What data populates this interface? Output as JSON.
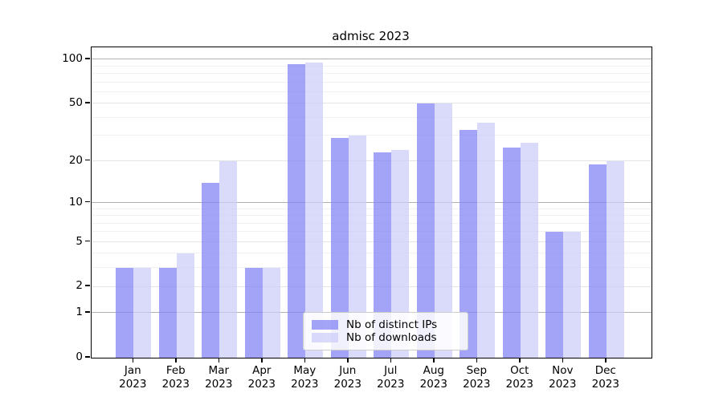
{
  "chart_data": {
    "type": "bar",
    "title": "admisc 2023",
    "categories": [
      "Jan",
      "Feb",
      "Mar",
      "Apr",
      "May",
      "Jun",
      "Jul",
      "Aug",
      "Sep",
      "Oct",
      "Nov",
      "Dec"
    ],
    "category_year": "2023",
    "series": [
      {
        "name": "Nb of distinct IPs",
        "color": "rgba(128,128,244,0.72)",
        "values": [
          3,
          3,
          14,
          3,
          93,
          29,
          23,
          50,
          33,
          25,
          6,
          19
        ]
      },
      {
        "name": "Nb of downloads",
        "color": "rgba(204,204,249,0.72)",
        "values": [
          3,
          4,
          20,
          3,
          95,
          30,
          24,
          50,
          37,
          27,
          6,
          20
        ]
      }
    ],
    "yscale": "log1p",
    "ylim": [
      0,
      121
    ],
    "y_ticks": [
      0,
      1,
      2,
      5,
      10,
      20,
      50,
      100
    ],
    "y_minor_ticks": [
      3,
      4,
      6,
      7,
      8,
      9,
      30,
      40,
      60,
      70,
      80,
      90
    ],
    "y_decade_ticks": [
      1,
      10,
      100
    ],
    "grid": true,
    "legend_position": "lower center"
  },
  "colors": {
    "grid_decade": "#b0b0b0",
    "grid_major": "#e4e4e4",
    "grid_minor": "#f1f1f1",
    "axis": "#000000",
    "legend_border": "#cccccc"
  }
}
